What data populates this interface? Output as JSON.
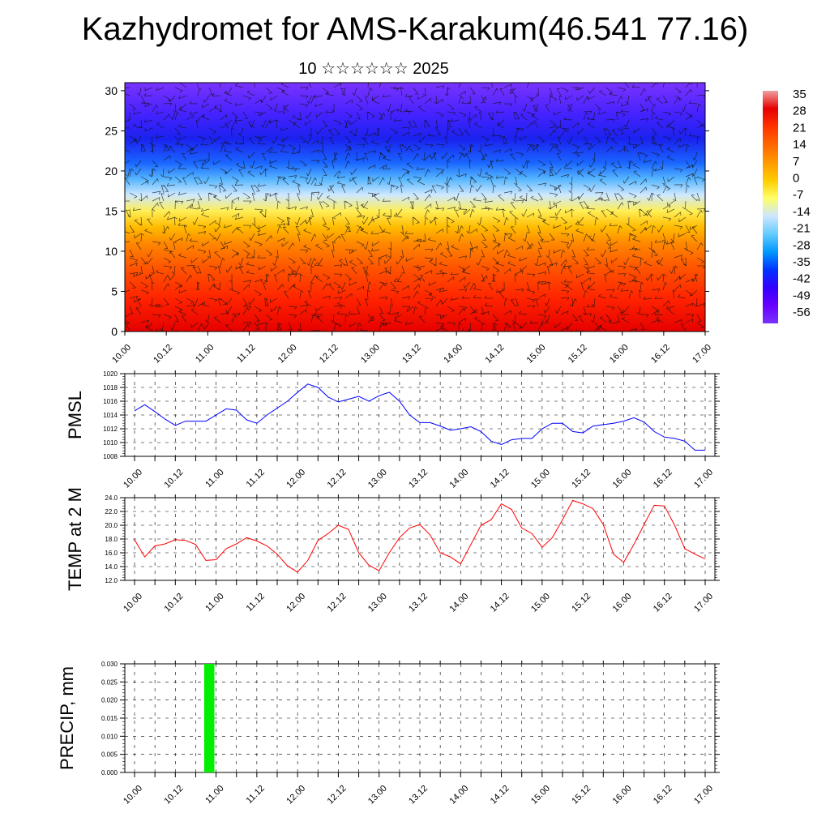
{
  "header": {
    "title": "Kazhydromet for AMS-Karakum(46.541 77.16)",
    "subtitle": "10 ☆☆☆☆☆☆ 2025"
  },
  "chart_data": [
    {
      "type": "heatmap",
      "name": "temperature-altitude",
      "y_ticks": [
        "0",
        "5",
        "10",
        "15",
        "20",
        "25",
        "30"
      ],
      "ylim": [
        0,
        31
      ],
      "x_ticks": [
        "10.00",
        "10.12",
        "11.00",
        "11.12",
        "12.00",
        "12.12",
        "13.00",
        "13.12",
        "14.00",
        "14.12",
        "15.00",
        "15.12",
        "16.00",
        "16.12",
        "17.00"
      ],
      "colorbar": {
        "labels": [
          "35",
          "28",
          "21",
          "14",
          "7",
          "0",
          "-7",
          "-14",
          "-21",
          "-28",
          "-35",
          "-42",
          "-49",
          "-56"
        ],
        "colors": [
          "#f0a0a0",
          "#e60000",
          "#ff3300",
          "#ff6600",
          "#ff9900",
          "#ffcc00",
          "#ffff66",
          "#cce6ff",
          "#66ccff",
          "#0099ff",
          "#0033ff",
          "#3300ff",
          "#6600ff",
          "#7a33ff"
        ]
      },
      "bands": [
        {
          "y": 0,
          "color": "#e60000"
        },
        {
          "y": 4,
          "color": "#ff2200"
        },
        {
          "y": 8,
          "color": "#ff5500"
        },
        {
          "y": 11,
          "color": "#ff8800"
        },
        {
          "y": 13,
          "color": "#ffbb00"
        },
        {
          "y": 15,
          "color": "#ffee55"
        },
        {
          "y": 17,
          "color": "#cfe8ff"
        },
        {
          "y": 19,
          "color": "#55b5ff"
        },
        {
          "y": 21,
          "color": "#1a66ff"
        },
        {
          "y": 24,
          "color": "#1a22ee"
        },
        {
          "y": 27,
          "color": "#4422ff"
        },
        {
          "y": 31,
          "color": "#7a33ff"
        }
      ],
      "grid": false,
      "wind_barbs": true
    },
    {
      "type": "line",
      "name": "pmsl",
      "ylabel": "PMSL",
      "ylim": [
        1008,
        1020
      ],
      "y_ticks": [
        "1008",
        "1010",
        "1012",
        "1014",
        "1016",
        "1018",
        "1020"
      ],
      "x_ticks": [
        "10.00",
        "10.12",
        "11.00",
        "11.12",
        "12.00",
        "12.12",
        "13.00",
        "13.12",
        "14.00",
        "14.12",
        "15.00",
        "15.12",
        "16.00",
        "16.12",
        "17.00"
      ],
      "grid": true,
      "color": "#0000ff",
      "values": [
        1014.6,
        1015.5,
        1014.5,
        1013.4,
        1012.5,
        1013.1,
        1013.1,
        1013.1,
        1014.0,
        1014.9,
        1014.7,
        1013.3,
        1012.8,
        1014.0,
        1015.0,
        1016.0,
        1017.3,
        1018.5,
        1018.0,
        1016.6,
        1015.9,
        1016.3,
        1016.7,
        1016.0,
        1016.8,
        1017.3,
        1016.0,
        1014.0,
        1012.9,
        1012.9,
        1012.4,
        1011.8,
        1012.0,
        1012.3,
        1011.6,
        1010.2,
        1009.7,
        1010.4,
        1010.6,
        1010.6,
        1012.0,
        1012.8,
        1012.8,
        1011.6,
        1011.4,
        1012.4,
        1012.6,
        1012.8,
        1013.1,
        1013.6,
        1013.0,
        1011.6,
        1010.8,
        1010.6,
        1010.2,
        1008.9,
        1008.9
      ],
      "x_step_hours": 3
    },
    {
      "type": "line",
      "name": "temp-2m",
      "ylabel": "TEMP at 2 M",
      "ylim": [
        12.0,
        24.0
      ],
      "y_ticks": [
        "12.0",
        "14.0",
        "16.0",
        "18.0",
        "20.0",
        "22.0",
        "24.0"
      ],
      "x_ticks": [
        "10.00",
        "10.12",
        "11.00",
        "11.12",
        "12.00",
        "12.12",
        "13.00",
        "13.12",
        "14.00",
        "14.12",
        "15.00",
        "15.12",
        "16.00",
        "16.12",
        "17.00"
      ],
      "grid": true,
      "color": "#ff0000",
      "values": [
        17.9,
        15.4,
        17.0,
        17.3,
        17.9,
        17.8,
        17.2,
        14.9,
        15.0,
        16.6,
        17.3,
        18.2,
        17.7,
        17.0,
        15.8,
        14.1,
        13.2,
        14.9,
        17.8,
        18.8,
        20.0,
        19.4,
        16.0,
        14.2,
        13.4,
        16.0,
        18.2,
        19.6,
        20.1,
        18.6,
        16.0,
        15.4,
        14.4,
        17.2,
        20.0,
        20.8,
        23.1,
        22.3,
        19.6,
        18.8,
        16.8,
        18.2,
        20.8,
        23.6,
        23.1,
        22.4,
        20.1,
        15.8,
        14.6,
        17.2,
        20.1,
        22.9,
        22.8,
        20.0,
        16.6,
        15.8,
        15.1
      ],
      "x_step_hours": 3
    },
    {
      "type": "bar",
      "name": "precip",
      "ylabel": "PRECIP, mm",
      "ylim": [
        0,
        0.03
      ],
      "y_ticks": [
        "0.000",
        "0.005",
        "0.010",
        "0.015",
        "0.020",
        "0.025",
        "0.030"
      ],
      "x_ticks": [
        "10.00",
        "10.12",
        "11.00",
        "11.12",
        "12.00",
        "12.12",
        "13.00",
        "13.12",
        "14.00",
        "14.12",
        "15.00",
        "15.12",
        "16.00",
        "16.12",
        "17.00"
      ],
      "grid": true,
      "color": "#00ee00",
      "bars": [
        {
          "x_hours": 22,
          "width_hours": 3,
          "value": 0.03
        }
      ]
    }
  ]
}
